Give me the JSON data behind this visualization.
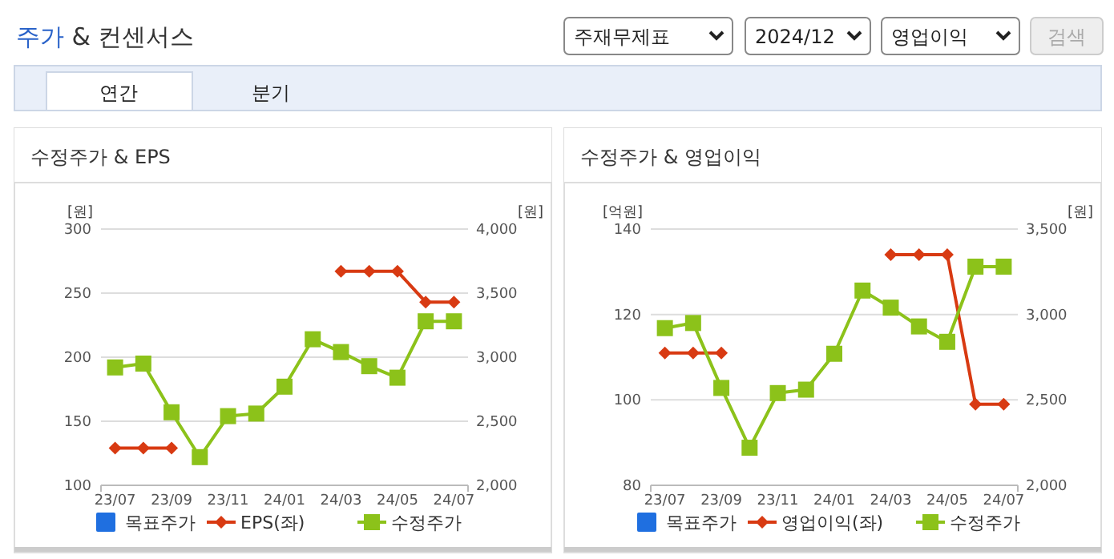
{
  "chart_data": [
    {
      "type": "other",
      "title": "주가 & 컨센서스",
      "annotations": [
        "주재무제표",
        "2024/12",
        "영업이익",
        "검색",
        "연간",
        "분기"
      ]
    },
    {
      "type": "line",
      "title": "수정주가 & EPS",
      "ylabel": "[원]",
      "y2label": "[원]",
      "categories": [
        "23/07",
        null,
        "23/09",
        null,
        "23/11",
        null,
        "24/01",
        null,
        "24/03",
        null,
        "24/05",
        null,
        "24/07"
      ],
      "ylim": [
        100,
        300
      ],
      "yticks": [
        100,
        150,
        200,
        250,
        300
      ],
      "y2lim": [
        2000,
        4000
      ],
      "y2ticks": [
        {
          "value": 2000,
          "label": "2,000"
        },
        {
          "value": 2500,
          "label": "2,500"
        },
        {
          "value": 3000,
          "label": "3,000"
        },
        {
          "value": 3500,
          "label": "3,500"
        },
        {
          "value": 4000,
          "label": "4,000"
        }
      ],
      "grid": "y",
      "legend": "bottom",
      "series": [
        {
          "name": "목표주가",
          "type": "scatter",
          "marker": "square",
          "color": "#1f6fe0",
          "values": [
            null,
            null,
            null,
            null,
            null,
            null,
            null,
            null,
            null,
            null,
            null,
            null,
            null
          ]
        },
        {
          "name": "EPS(좌)",
          "marker": "diamond",
          "color": "#d83a12",
          "values": [
            129,
            129,
            129,
            null,
            null,
            null,
            null,
            null,
            267,
            267,
            267,
            243,
            243
          ]
        },
        {
          "name": "수정주가",
          "marker": "square",
          "color": "#8cc21a",
          "axis": "y2",
          "values": [
            2920,
            2950,
            2570,
            2220,
            2540,
            2560,
            2770,
            3140,
            3040,
            2930,
            2840,
            3280,
            3280
          ]
        }
      ]
    },
    {
      "type": "line",
      "title": "수정주가 & 영업이익",
      "ylabel": "[억원]",
      "y2label": "[원]",
      "categories": [
        "23/07",
        null,
        "23/09",
        null,
        "23/11",
        null,
        "24/01",
        null,
        "24/03",
        null,
        "24/05",
        null,
        "24/07"
      ],
      "ylim": [
        80,
        140
      ],
      "yticks": [
        80,
        100,
        120,
        140
      ],
      "y2lim": [
        2000,
        3500
      ],
      "y2ticks": [
        {
          "value": 2000,
          "label": "2,000"
        },
        {
          "value": 2500,
          "label": "2,500"
        },
        {
          "value": 3000,
          "label": "3,000"
        },
        {
          "value": 3500,
          "label": "3,500"
        }
      ],
      "grid": "y",
      "legend": "bottom",
      "series": [
        {
          "name": "목표주가",
          "type": "scatter",
          "marker": "square",
          "color": "#1f6fe0",
          "values": [
            null,
            null,
            null,
            null,
            null,
            null,
            null,
            null,
            null,
            null,
            null,
            null,
            null
          ]
        },
        {
          "name": "영업이익(좌)",
          "marker": "diamond",
          "color": "#d83a12",
          "values": [
            111,
            111,
            111,
            null,
            null,
            null,
            null,
            null,
            134,
            134,
            134,
            99,
            99
          ]
        },
        {
          "name": "수정주가",
          "marker": "square",
          "color": "#8cc21a",
          "axis": "y2",
          "values": [
            2920,
            2950,
            2570,
            2220,
            2540,
            2560,
            2770,
            3140,
            3040,
            2930,
            2840,
            3280,
            3280
          ]
        }
      ]
    }
  ]
}
